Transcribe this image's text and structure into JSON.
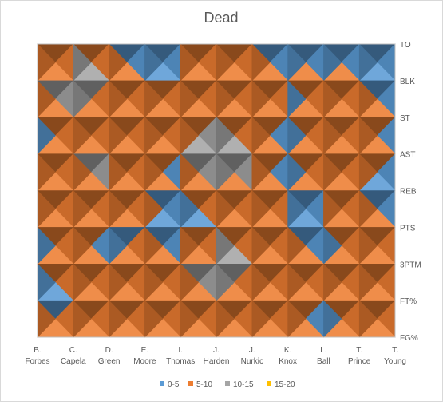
{
  "chart_data": {
    "type": "surface-contour",
    "title": "Dead",
    "x_categories": [
      [
        "B.",
        "Forbes"
      ],
      [
        "C.",
        "Capela"
      ],
      [
        "D.",
        "Green"
      ],
      [
        "E.",
        "Moore"
      ],
      [
        "I.",
        "Thomas"
      ],
      [
        "J.",
        "Harden"
      ],
      [
        "J.",
        "Nurkic"
      ],
      [
        "K.",
        "Knox"
      ],
      [
        "L.",
        "Ball"
      ],
      [
        "T.",
        "Prince"
      ],
      [
        "T.",
        "Young"
      ]
    ],
    "y_categories": [
      "TO",
      "BLK",
      "ST",
      "AST",
      "REB",
      "PTS",
      "3PTM",
      "FT%",
      "FG%"
    ],
    "bands": [
      {
        "label": "0-5",
        "range": [
          0,
          5
        ],
        "color": "#5b9bd5"
      },
      {
        "label": "5-10",
        "range": [
          5,
          10
        ],
        "color": "#ed7d31"
      },
      {
        "label": "10-15",
        "range": [
          10,
          15
        ],
        "color": "#a5a5a5"
      },
      {
        "label": "15-20",
        "range": [
          15,
          20
        ],
        "color": "#ffc000"
      }
    ],
    "z_grid": [
      [
        2,
        6,
        3,
        2,
        2,
        9,
        6,
        2,
        3,
        2,
        2
      ],
      [
        6,
        16,
        11,
        2,
        8,
        9,
        11,
        6,
        7,
        7,
        2
      ],
      [
        3,
        7,
        7,
        8,
        3,
        11,
        7,
        3,
        7,
        9,
        3
      ],
      [
        3,
        8,
        13,
        7,
        6,
        17,
        11,
        4,
        7,
        8,
        4
      ],
      [
        6,
        9,
        8,
        7,
        3,
        9,
        8,
        3,
        7,
        6,
        3
      ],
      [
        3,
        7,
        3,
        6,
        3,
        6,
        7,
        6,
        3,
        7,
        6
      ],
      [
        4,
        8,
        4,
        7,
        6,
        16,
        11,
        7,
        6,
        7,
        11
      ],
      [
        3,
        6,
        6,
        7,
        7,
        8,
        7,
        7,
        6,
        6,
        6
      ],
      [
        7,
        7,
        7,
        7,
        7,
        7,
        7,
        7,
        3,
        7,
        7
      ]
    ]
  },
  "legend": {
    "items": [
      {
        "label": "0-5",
        "color": "#5b9bd5"
      },
      {
        "label": "5-10",
        "color": "#ed7d31"
      },
      {
        "label": "10-15",
        "color": "#a5a5a5"
      },
      {
        "label": "15-20",
        "color": "#ffc000"
      }
    ]
  }
}
